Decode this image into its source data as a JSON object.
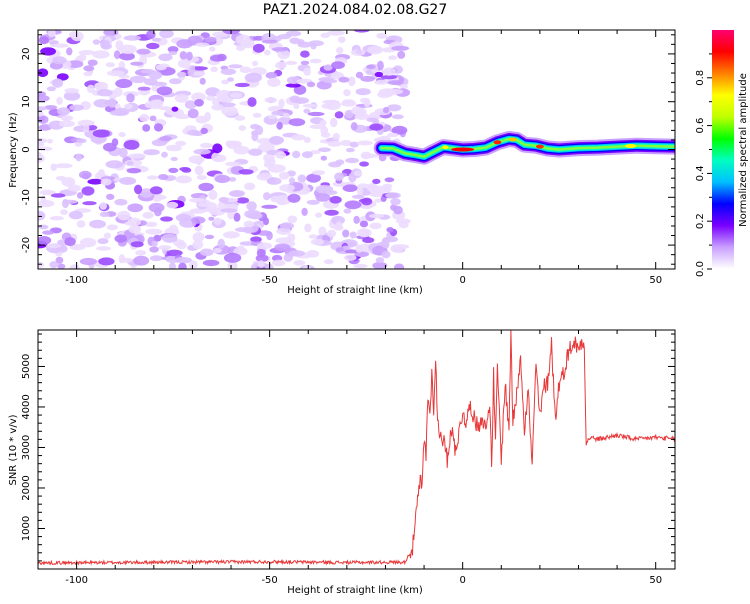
{
  "title": "PAZ1.2024.084.02.08.G27",
  "chart_data": [
    {
      "type": "heatmap",
      "xlabel": "Height of straight line (km)",
      "ylabel": "Frequency (Hz)",
      "xlim": [
        -110,
        55
      ],
      "ylim": [
        -25,
        25
      ],
      "x_ticks": [
        -100,
        -50,
        0,
        50
      ],
      "x_tick_labels": [
        "-100",
        "-50",
        "0",
        "50"
      ],
      "y_ticks": [
        -20,
        -10,
        0,
        10,
        20
      ],
      "y_tick_labels": [
        "-20",
        "-10",
        "0",
        "10",
        "20"
      ],
      "colorbar": {
        "label": "Normalized spectral amplitude",
        "range": [
          0,
          1
        ],
        "ticks": [
          0,
          0.2,
          0.4,
          0.6,
          0.8
        ],
        "tick_labels": [
          "0.0",
          "0.2",
          "0.4",
          "0.6",
          "0.8"
        ],
        "colormap": [
          "#ffffff",
          "#c9a0ff",
          "#7a00ff",
          "#0000ff",
          "#00c0ff",
          "#00ffc0",
          "#00ff00",
          "#c0ff00",
          "#ffff00",
          "#ff8000",
          "#ff0000",
          "#ff0070"
        ]
      },
      "noise_region_x": [
        -110,
        -15
      ],
      "signal_ridge": {
        "x": [
          -21,
          -18,
          -15,
          -12,
          -10,
          -8,
          -5,
          -2,
          0,
          3,
          6,
          9,
          12,
          14,
          16,
          19,
          22,
          25,
          30,
          35,
          40,
          45,
          50,
          55
        ],
        "y": [
          0.3,
          0.2,
          -0.8,
          -1.2,
          -1.5,
          -0.7,
          0.5,
          0.2,
          0.0,
          0.1,
          0.4,
          1.5,
          2.2,
          2.0,
          1.0,
          0.8,
          0.2,
          0.0,
          0.3,
          0.4,
          0.6,
          0.8,
          0.7,
          0.6
        ]
      }
    },
    {
      "type": "line",
      "xlabel": "Height of straight line (km)",
      "ylabel": "SNR (10 * v/v)",
      "xlim": [
        -110,
        55
      ],
      "ylim": [
        0,
        5900
      ],
      "x_ticks": [
        -100,
        -50,
        0,
        50
      ],
      "x_tick_labels": [
        "-100",
        "-50",
        "0",
        "50"
      ],
      "y_ticks": [
        1000,
        2000,
        3000,
        4000,
        5000
      ],
      "y_tick_labels": [
        "1000",
        "2000",
        "3000",
        "4000",
        "5000"
      ],
      "line_color": "#e8393a",
      "series": [
        {
          "x": [
            -110,
            -90,
            -70,
            -50,
            -30,
            -15,
            -13,
            -12,
            -11,
            -10.5,
            -10,
            -9.5,
            -9,
            -8.5,
            -8,
            -7.5,
            -7,
            -6.5,
            -6,
            -5,
            -4,
            -3,
            -2,
            -1,
            0,
            1,
            2,
            3,
            4,
            5,
            6,
            7,
            7.5,
            8,
            8.5,
            9,
            10,
            11,
            12,
            12.5,
            13,
            14,
            15,
            16,
            17,
            18,
            19,
            20,
            21,
            22,
            23,
            24,
            25,
            26,
            27,
            28,
            29,
            30,
            31,
            31.5,
            32,
            33,
            35,
            40,
            45,
            50,
            55
          ],
          "y": [
            150,
            160,
            170,
            180,
            160,
            170,
            500,
            1400,
            2200,
            2000,
            3200,
            2800,
            4300,
            3800,
            4800,
            4000,
            5200,
            3600,
            3400,
            3200,
            2700,
            3500,
            3000,
            3300,
            3900,
            3600,
            4100,
            3700,
            3500,
            3800,
            3400,
            4200,
            2400,
            4800,
            3000,
            5000,
            2700,
            4600,
            3400,
            5900,
            3600,
            4300,
            5300,
            3500,
            4400,
            2500,
            5100,
            3700,
            4500,
            4600,
            5600,
            3700,
            4600,
            4800,
            5200,
            5500,
            5600,
            5400,
            5700,
            5600,
            3100,
            3250,
            3200,
            3300,
            3200,
            3250,
            3200
          ]
        }
      ]
    }
  ]
}
